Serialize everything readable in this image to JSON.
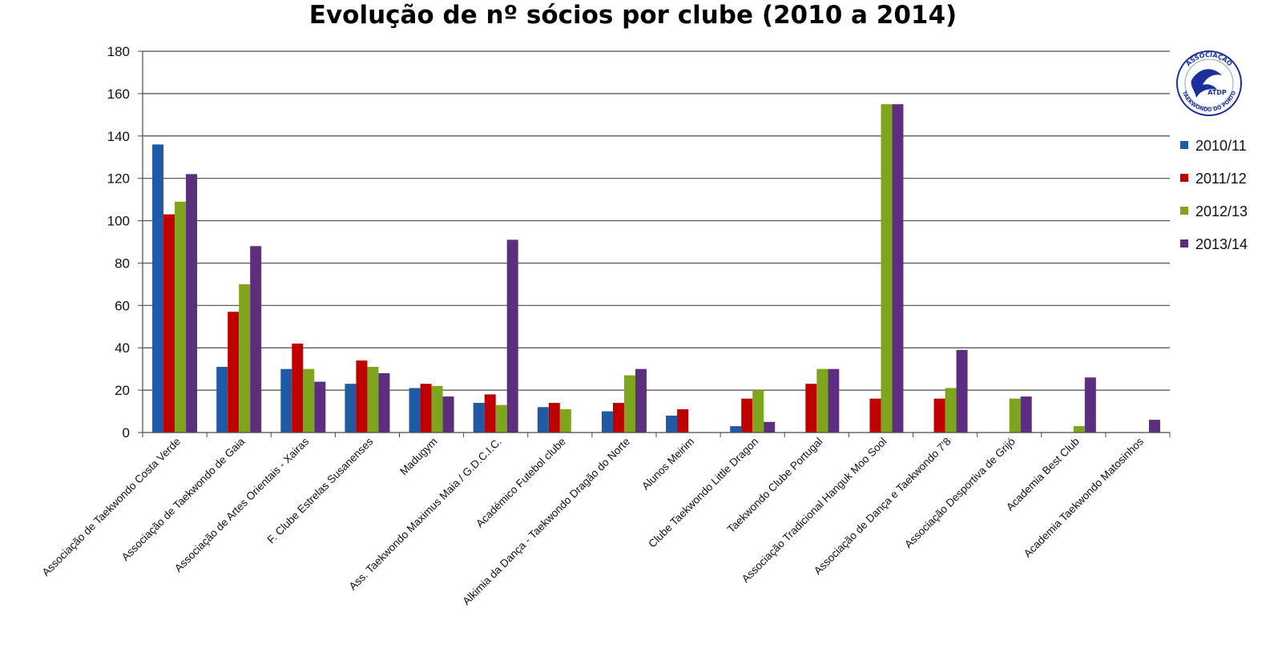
{
  "chart_data": {
    "type": "bar",
    "title": "Evolução de nº sócios por clube (2010 a 2014)",
    "xlabel": "",
    "ylabel": "",
    "ylim": [
      0,
      180
    ],
    "yticks": [
      0,
      20,
      40,
      60,
      80,
      100,
      120,
      140,
      160,
      180
    ],
    "grid": true,
    "legend_position": "right",
    "categories": [
      "Associação de Taekwondo Costa Verde",
      "Associação de Taekwondo de Gaia",
      "Associação de Artes Orientais - Xairas",
      "F. Clube Estrelas Susanenses",
      "Madugym",
      "Ass. Taekwondo Maximus Maia / G.D.C.I.C.",
      "Académico Futebol clube",
      "Alkimia da Dança - Taekwondo Dragão do Norte",
      "Alunos Meirim",
      "Clube Taekwondo  Little Dragon",
      "Taekwondo Clube Portugal",
      "Associação Tradicional Hanguk Moo Sool",
      "Associação de Dança e Taekwondo 7'8",
      "Associação Desportiva de Grijó",
      "Academia Best Club",
      "Academia Taekwondo Matosinhos"
    ],
    "series": [
      {
        "name": "2010/11",
        "color": "#1f5aa6",
        "values": [
          136,
          31,
          30,
          23,
          21,
          14,
          12,
          10,
          8,
          3,
          0,
          0,
          0,
          0,
          0,
          0
        ]
      },
      {
        "name": "2011/12",
        "color": "#c00000",
        "values": [
          103,
          57,
          42,
          34,
          23,
          18,
          14,
          14,
          11,
          16,
          23,
          16,
          16,
          0,
          0,
          0
        ]
      },
      {
        "name": "2012/13",
        "color": "#7fa51c",
        "values": [
          109,
          70,
          30,
          31,
          22,
          13,
          11,
          27,
          0,
          20,
          30,
          155,
          21,
          16,
          3,
          0
        ]
      },
      {
        "name": "2013/14",
        "color": "#5b2f7e",
        "values": [
          122,
          88,
          24,
          28,
          17,
          91,
          0,
          30,
          0,
          5,
          30,
          155,
          39,
          17,
          26,
          6
        ]
      }
    ]
  },
  "logo": {
    "top_text": "ASSOCIAÇÃO",
    "bottom_text": "TAEKWONDO DO PORTO",
    "center_text": "ATDP",
    "color": "#1a2f9b"
  }
}
